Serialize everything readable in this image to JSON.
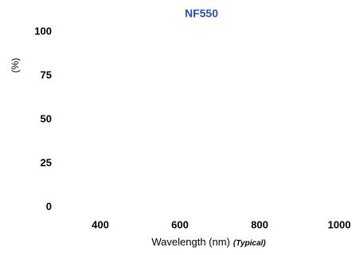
{
  "chart_data": {
    "type": "line",
    "title": "NF550",
    "y_label": "(%)",
    "x_label": "Wavelength (nm)",
    "x_label_note": "(Typical)",
    "series": [],
    "xlim": [
      300,
      1000
    ],
    "xticks": [
      400,
      600,
      800,
      1000
    ],
    "ylim": [
      0,
      100
    ],
    "yticks": [
      0,
      25,
      50,
      75,
      100
    ],
    "grid": false,
    "title_color": "#2a4fb4"
  }
}
